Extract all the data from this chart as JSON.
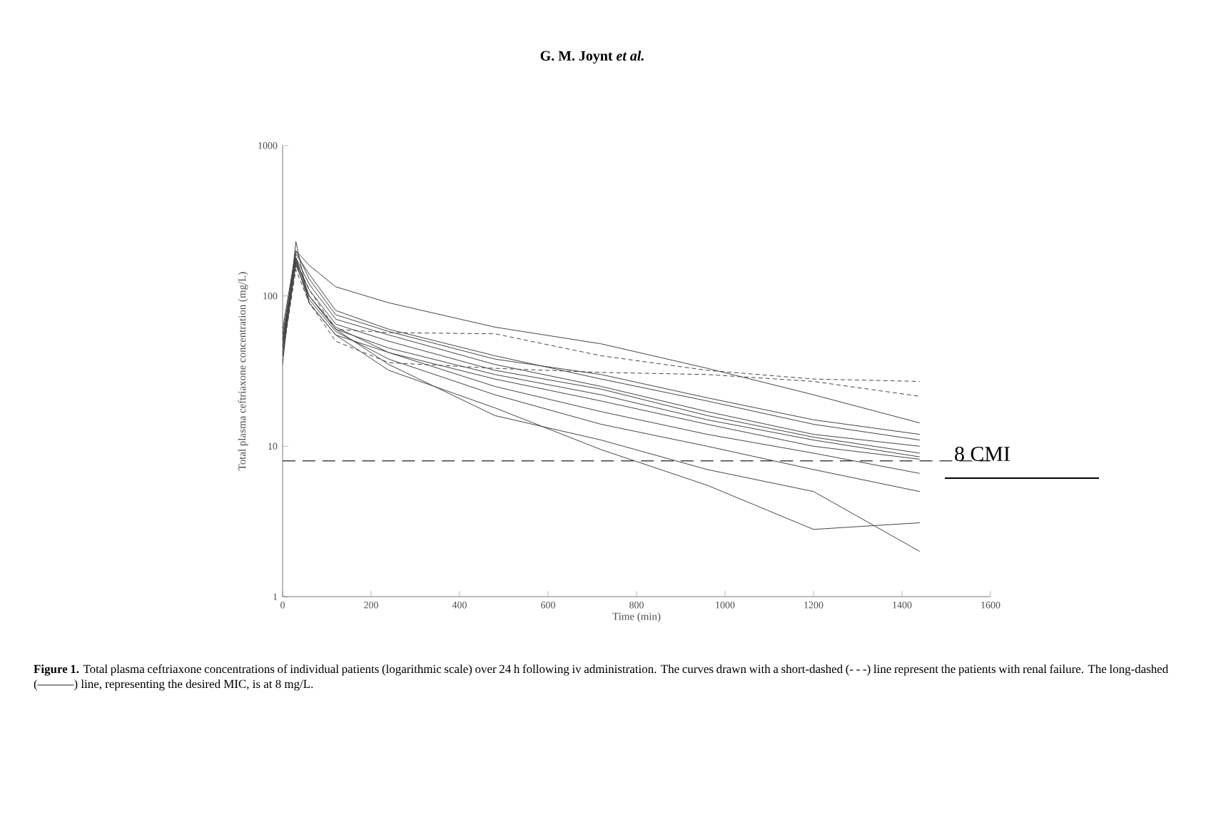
{
  "chart_data": {
    "type": "line",
    "title": "G. M. Joynt *et al.*",
    "xlabel": "Time (min)",
    "ylabel": "Total plasma ceftriaxone concentration (mg/L)",
    "log": "y",
    "grid": false,
    "x": [
      0,
      30,
      60,
      120,
      240,
      480,
      720,
      960,
      1200,
      1440
    ],
    "xlim": [
      0,
      1600
    ],
    "xticks": [
      0,
      200,
      400,
      600,
      800,
      1000,
      1200,
      1400,
      1600
    ],
    "ylim": [
      1,
      1000
    ],
    "yticks": [
      1,
      10,
      100,
      1000
    ],
    "series": [
      {
        "color": "#444444",
        "line_style": "solid",
        "values": [
          50,
          200,
          160,
          115,
          90,
          62,
          48,
          33,
          22,
          14.3
        ]
      },
      {
        "color": "#444444",
        "line_style": "dashed",
        "values": [
          45,
          170,
          110,
          60,
          57,
          56,
          40,
          32,
          28,
          27
        ]
      },
      {
        "color": "#444444",
        "line_style": "dashed",
        "values": [
          40,
          150,
          90,
          50,
          36,
          33,
          31,
          30,
          27,
          21.5
        ]
      },
      {
        "color": "#444444",
        "line_style": "solid",
        "values": [
          60,
          200,
          130,
          75,
          58,
          38,
          30,
          21,
          15,
          12
        ]
      },
      {
        "color": "#444444",
        "line_style": "solid",
        "values": [
          55,
          190,
          140,
          80,
          60,
          40,
          28,
          20,
          14,
          11
        ]
      },
      {
        "color": "#444444",
        "line_style": "solid",
        "values": [
          45,
          180,
          120,
          70,
          55,
          35,
          25,
          17,
          12,
          10
        ]
      },
      {
        "color": "#444444",
        "line_style": "solid",
        "values": [
          40,
          170,
          110,
          65,
          50,
          32,
          24,
          16,
          11.5,
          9
        ]
      },
      {
        "color": "#444444",
        "line_style": "solid",
        "values": [
          50,
          160,
          100,
          60,
          45,
          30,
          22,
          15,
          11,
          8.5
        ]
      },
      {
        "color": "#444444",
        "line_style": "solid",
        "values": [
          35,
          230,
          90,
          55,
          42,
          28,
          20,
          14,
          10,
          8.2
        ]
      },
      {
        "color": "#444444",
        "line_style": "solid",
        "values": [
          45,
          175,
          100,
          62,
          42,
          25,
          17,
          12,
          9,
          6.6
        ]
      },
      {
        "color": "#444444",
        "line_style": "solid",
        "values": [
          40,
          165,
          95,
          58,
          38,
          22,
          14,
          10,
          7,
          5
        ]
      },
      {
        "color": "#444444",
        "line_style": "solid",
        "values": [
          50,
          180,
          100,
          60,
          35,
          16,
          11,
          7,
          5,
          2
        ]
      },
      {
        "color": "#444444",
        "line_style": "solid",
        "values": [
          45,
          170,
          90,
          55,
          32,
          18,
          9.5,
          5.5,
          2.8,
          3.1
        ]
      }
    ],
    "ref_lines": [
      {
        "axis": "y",
        "value": 8,
        "line_style": "long-dashed",
        "color": "#444444"
      }
    ],
    "annotations": [
      "8 CMI",
      "**Figure 1.** Total plasma ceftriaxone concentrations of individual patients (logarithmic scale) over 24 h following iv administration. The curves drawn with a short-dashed (- - -) line represent the patients with renal failure. The long-dashed (———) line, representing the desired MIC, is at 8 mg/L."
    ]
  }
}
